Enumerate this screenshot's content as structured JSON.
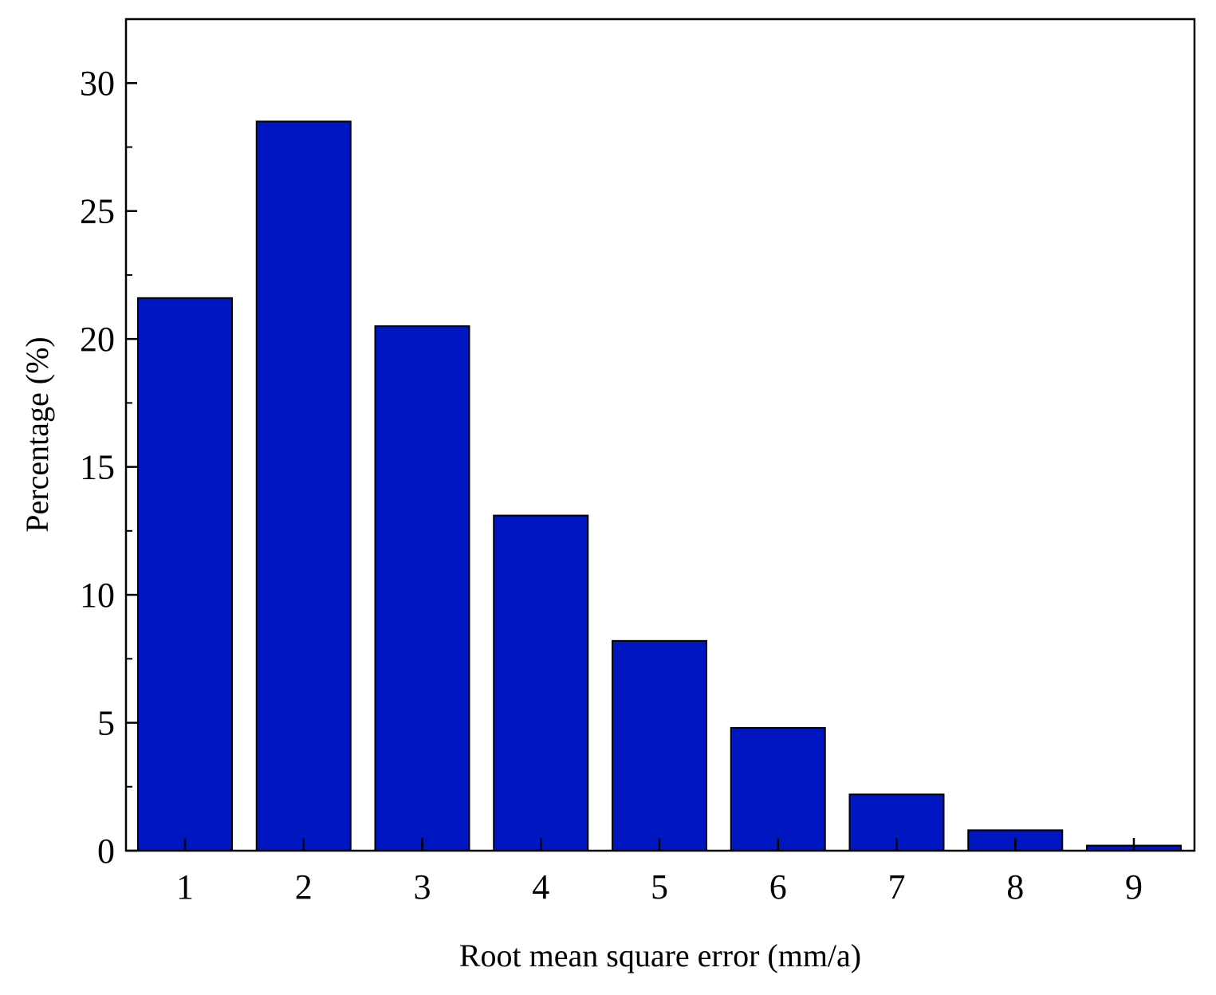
{
  "chart_data": {
    "type": "bar",
    "title": "",
    "xlabel": "Root mean square error (mm/a)",
    "ylabel": "Percentage (%)",
    "categories": [
      "1",
      "2",
      "3",
      "4",
      "5",
      "6",
      "7",
      "8",
      "9"
    ],
    "values": [
      21.6,
      28.5,
      20.5,
      13.1,
      8.2,
      4.8,
      2.2,
      0.8,
      0.2
    ],
    "ylim": [
      0,
      32.5
    ],
    "yticks": [
      "0",
      "5",
      "10",
      "15",
      "20",
      "25",
      "30"
    ],
    "grid": false,
    "legend": false,
    "bar_color": "#0016C0",
    "edge_color": "#000000"
  }
}
